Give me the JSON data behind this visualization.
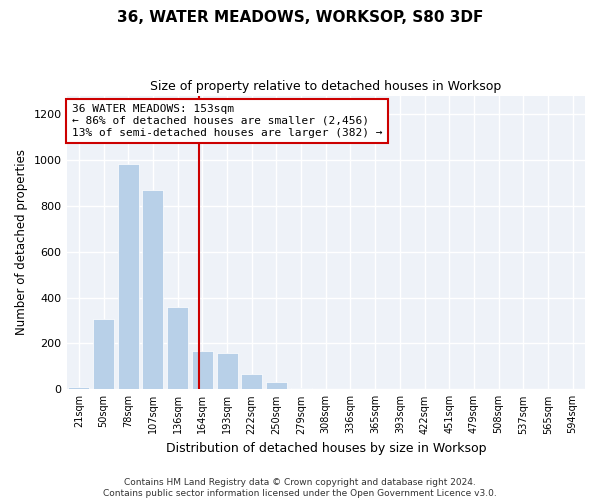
{
  "title": "36, WATER MEADOWS, WORKSOP, S80 3DF",
  "subtitle": "Size of property relative to detached houses in Worksop",
  "xlabel": "Distribution of detached houses by size in Worksop",
  "ylabel": "Number of detached properties",
  "bar_color": "#b8d0e8",
  "background_color": "#eef2f8",
  "grid_color": "#ffffff",
  "categories": [
    "21sqm",
    "50sqm",
    "78sqm",
    "107sqm",
    "136sqm",
    "164sqm",
    "193sqm",
    "222sqm",
    "250sqm",
    "279sqm",
    "308sqm",
    "336sqm",
    "365sqm",
    "393sqm",
    "422sqm",
    "451sqm",
    "479sqm",
    "508sqm",
    "537sqm",
    "565sqm",
    "594sqm"
  ],
  "values": [
    8,
    305,
    980,
    870,
    360,
    165,
    160,
    65,
    30,
    5,
    0,
    0,
    0,
    0,
    0,
    0,
    0,
    0,
    0,
    0,
    0
  ],
  "ylim": [
    0,
    1280
  ],
  "yticks": [
    0,
    200,
    400,
    600,
    800,
    1000,
    1200
  ],
  "property_line_x": 4.85,
  "property_line_color": "#cc0000",
  "annotation_text": "36 WATER MEADOWS: 153sqm\n← 86% of detached houses are smaller (2,456)\n13% of semi-detached houses are larger (382) →",
  "annotation_box_color": "#ffffff",
  "annotation_box_edge": "#cc0000",
  "footnote": "Contains HM Land Registry data © Crown copyright and database right 2024.\nContains public sector information licensed under the Open Government Licence v3.0."
}
